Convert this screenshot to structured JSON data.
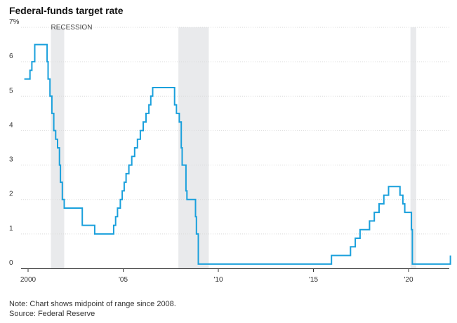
{
  "chart_data": {
    "type": "line",
    "title": "Federal-funds target rate",
    "note": "Note: Chart shows midpoint of range since 2008.",
    "source": "Source: Federal Reserve",
    "recession_label": "RECESSION",
    "x_tick_labels": [
      "2000",
      "'05",
      "'10",
      "'15",
      "'20"
    ],
    "x_tick_values": [
      2000,
      2005,
      2010,
      2015,
      2020
    ],
    "y_tick_labels": [
      "0",
      "1",
      "2",
      "3",
      "4",
      "5",
      "6",
      "7%"
    ],
    "y_tick_values": [
      0,
      1,
      2,
      3,
      4,
      5,
      6,
      7
    ],
    "xlim": [
      1999.5,
      2022.3
    ],
    "ylim": [
      0,
      7
    ],
    "grid": "horizontal",
    "line_color": "#1aa0dc",
    "recession_color": "#e9eaec",
    "recessions": [
      {
        "start": 2001.2,
        "end": 2001.9
      },
      {
        "start": 2007.9,
        "end": 2009.5
      },
      {
        "start": 2020.1,
        "end": 2020.4
      }
    ],
    "series": [
      {
        "step": true,
        "points": [
          [
            1999.8,
            5.5
          ],
          [
            2000.1,
            5.75
          ],
          [
            2000.2,
            6.0
          ],
          [
            2000.35,
            6.5
          ],
          [
            2001.0,
            6.0
          ],
          [
            2001.05,
            5.5
          ],
          [
            2001.15,
            5.0
          ],
          [
            2001.25,
            4.5
          ],
          [
            2001.35,
            4.0
          ],
          [
            2001.45,
            3.75
          ],
          [
            2001.55,
            3.5
          ],
          [
            2001.65,
            3.0
          ],
          [
            2001.7,
            2.5
          ],
          [
            2001.8,
            2.0
          ],
          [
            2001.9,
            1.75
          ],
          [
            2002.85,
            1.25
          ],
          [
            2003.5,
            1.0
          ],
          [
            2004.5,
            1.25
          ],
          [
            2004.6,
            1.5
          ],
          [
            2004.7,
            1.75
          ],
          [
            2004.85,
            2.0
          ],
          [
            2004.95,
            2.25
          ],
          [
            2005.05,
            2.5
          ],
          [
            2005.15,
            2.75
          ],
          [
            2005.3,
            3.0
          ],
          [
            2005.45,
            3.25
          ],
          [
            2005.6,
            3.5
          ],
          [
            2005.75,
            3.75
          ],
          [
            2005.9,
            4.0
          ],
          [
            2006.05,
            4.25
          ],
          [
            2006.2,
            4.5
          ],
          [
            2006.35,
            4.75
          ],
          [
            2006.45,
            5.0
          ],
          [
            2006.55,
            5.25
          ],
          [
            2007.7,
            4.75
          ],
          [
            2007.8,
            4.5
          ],
          [
            2007.95,
            4.25
          ],
          [
            2008.05,
            3.5
          ],
          [
            2008.1,
            3.0
          ],
          [
            2008.3,
            2.25
          ],
          [
            2008.35,
            2.0
          ],
          [
            2008.8,
            1.5
          ],
          [
            2008.85,
            1.0
          ],
          [
            2008.95,
            0.125
          ],
          [
            2015.95,
            0.375
          ],
          [
            2016.95,
            0.625
          ],
          [
            2017.2,
            0.875
          ],
          [
            2017.45,
            1.125
          ],
          [
            2017.95,
            1.375
          ],
          [
            2018.2,
            1.625
          ],
          [
            2018.45,
            1.875
          ],
          [
            2018.7,
            2.125
          ],
          [
            2018.95,
            2.375
          ],
          [
            2019.55,
            2.125
          ],
          [
            2019.7,
            1.875
          ],
          [
            2019.8,
            1.625
          ],
          [
            2020.15,
            1.125
          ],
          [
            2020.2,
            0.125
          ],
          [
            2022.2,
            0.375
          ]
        ]
      }
    ]
  }
}
